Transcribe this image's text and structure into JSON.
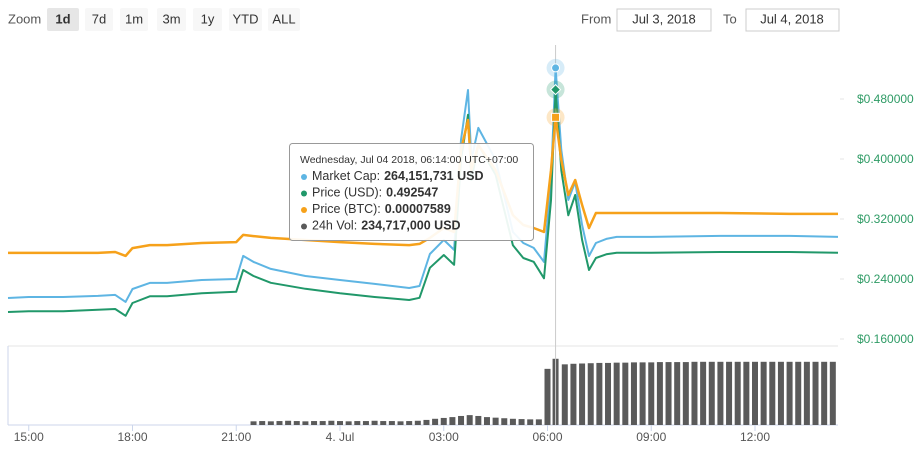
{
  "controls": {
    "zoom_label": "Zoom",
    "zoom_buttons": [
      "1d",
      "7d",
      "1m",
      "3m",
      "1y",
      "YTD",
      "ALL"
    ],
    "zoom_selected": "1d",
    "from_label": "From",
    "from": "Jul 3, 2018",
    "to_label": "To",
    "to": "Jul 4, 2018"
  },
  "chart_data": {
    "type": "line",
    "x": [
      14.4,
      15,
      16,
      17,
      17.5,
      17.8,
      18,
      18.5,
      19,
      20,
      21,
      21.2,
      21.5,
      22,
      23,
      24,
      25,
      26,
      26.3,
      26.6,
      27,
      27.3,
      27.5,
      27.7,
      27.8,
      28,
      28.5,
      29,
      29.3,
      29.6,
      29.9,
      30.1,
      30.233,
      30.4,
      30.6,
      30.8,
      31,
      31.2,
      31.4,
      31.7,
      32,
      33,
      35,
      37,
      38.4
    ],
    "xlim": [
      14.4,
      38.4
    ],
    "xticks": [
      {
        "value": 15,
        "label": "15:00"
      },
      {
        "value": 18,
        "label": "18:00"
      },
      {
        "value": 21,
        "label": "21:00"
      },
      {
        "value": 24,
        "label": "4. Jul"
      },
      {
        "value": 27,
        "label": "03:00"
      },
      {
        "value": 30,
        "label": "06:00"
      },
      {
        "value": 33,
        "label": "09:00"
      },
      {
        "value": 36,
        "label": "12:00"
      }
    ],
    "ylim": [
      0.152,
      0.552
    ],
    "yticks": [
      {
        "value": 0.16,
        "label": "$0.160000"
      },
      {
        "value": 0.24,
        "label": "$0.240000"
      },
      {
        "value": 0.32,
        "label": "$0.320000"
      },
      {
        "value": 0.4,
        "label": "$0.400000"
      },
      {
        "value": 0.48,
        "label": "$0.480000"
      }
    ],
    "y2lim": [
      72700000,
      280000000
    ],
    "y3lim": [
      0,
      0.0001
    ],
    "grid": false,
    "series": [
      {
        "name": "Market Cap:",
        "color": "#5eb5e3",
        "axis": "y2",
        "values": [
          105200000,
          105900000,
          105900000,
          106600000,
          107300000,
          102500000,
          111400000,
          115600000,
          115600000,
          117600000,
          118300000,
          134300000,
          130100000,
          125300000,
          120400000,
          117600000,
          114900000,
          112100000,
          113500000,
          135600000,
          145300000,
          138400000,
          214400000,
          248900000,
          200600000,
          222700000,
          200600000,
          150800000,
          143200000,
          139800000,
          130100000,
          186800000,
          264151731,
          207500000,
          172900000,
          185400000,
          155600000,
          134200000,
          143200000,
          146000000,
          147400000,
          147400000,
          148100000,
          148100000,
          147400000
        ]
      },
      {
        "name": "Price (USD):",
        "color": "#21986a",
        "values": [
          0.196,
          0.197,
          0.197,
          0.199,
          0.2,
          0.191,
          0.208,
          0.217,
          0.217,
          0.221,
          0.223,
          0.252,
          0.244,
          0.235,
          0.227,
          0.221,
          0.216,
          0.212,
          0.215,
          0.255,
          0.272,
          0.259,
          0.399,
          0.459,
          0.372,
          0.419,
          0.379,
          0.285,
          0.268,
          0.263,
          0.241,
          0.345,
          0.492547,
          0.385,
          0.325,
          0.352,
          0.292,
          0.252,
          0.268,
          0.273,
          0.275,
          0.275,
          0.276,
          0.276,
          0.275
        ]
      },
      {
        "name": "Price (BTC):",
        "color": "#f6a11a",
        "axis": "y3",
        "values": [
          3.07e-05,
          3.07e-05,
          3.07e-05,
          3.07e-05,
          3.1e-05,
          2.97e-05,
          3.23e-05,
          3.33e-05,
          3.33e-05,
          3.4e-05,
          3.43e-05,
          3.67e-05,
          3.63e-05,
          3.57e-05,
          3.5e-05,
          3.43e-05,
          3.37e-05,
          3.33e-05,
          3.37e-05,
          3.57e-05,
          3.9e-05,
          3.77e-05,
          6.5e-05,
          7.5e-05,
          5.83e-05,
          6.67e-05,
          5.83e-05,
          4.33e-05,
          4e-05,
          3.9e-05,
          3.77e-05,
          5.83e-05,
          7.589e-05,
          6.17e-05,
          5e-05,
          5.5e-05,
          4.67e-05,
          3.9e-05,
          4.4e-05,
          4.4e-05,
          4.4e-05,
          4.4e-05,
          4.4e-05,
          4.37e-05,
          4.37e-05
        ]
      }
    ],
    "volume": {
      "name": "24h Vol:",
      "color": "#5a5a5a",
      "ylim": [
        0,
        280000000
      ],
      "x": [
        21.5,
        21.75,
        22,
        22.25,
        22.5,
        22.75,
        23,
        23.25,
        23.5,
        23.75,
        24,
        24.25,
        24.5,
        24.75,
        25,
        25.25,
        25.5,
        25.75,
        26,
        26.25,
        26.5,
        26.75,
        27,
        27.25,
        27.5,
        27.75,
        28,
        28.25,
        28.5,
        28.75,
        29,
        29.25,
        29.5,
        29.75,
        30,
        30.233,
        30.5,
        30.75,
        31,
        31.25,
        31.5,
        31.75,
        32,
        32.25,
        32.5,
        32.75,
        33,
        33.25,
        33.5,
        33.75,
        34,
        34.25,
        34.5,
        34.75,
        35,
        35.25,
        35.5,
        35.75,
        36,
        36.25,
        36.5,
        36.75,
        37,
        37.25,
        37.5,
        37.75,
        38,
        38.25
      ],
      "values": [
        13000000,
        14000000,
        13000000,
        14000000,
        15000000,
        14000000,
        13000000,
        14000000,
        14000000,
        15000000,
        14000000,
        13000000,
        14000000,
        14000000,
        15000000,
        14000000,
        14000000,
        13000000,
        14000000,
        15000000,
        18000000,
        22000000,
        25000000,
        28000000,
        32000000,
        35000000,
        32000000,
        28000000,
        26000000,
        24000000,
        22000000,
        21000000,
        20000000,
        20000000,
        199000000,
        234717000,
        215000000,
        217000000,
        218000000,
        219000000,
        220000000,
        220000000,
        221000000,
        221000000,
        222000000,
        222000000,
        222000000,
        223000000,
        223000000,
        223000000,
        223000000,
        224000000,
        224000000,
        224000000,
        224000000,
        224000000,
        224000000,
        224000000,
        224000000,
        224000000,
        224000000,
        224000000,
        224000000,
        224000000,
        224000000,
        224000000,
        224000000,
        224000000
      ]
    },
    "tooltip": {
      "title": "Wednesday, Jul 04 2018, 06:14:00 UTC+07:00",
      "values": [
        "264,151,731 USD",
        "0.492547",
        "0.00007589",
        "234,717,000 USD"
      ]
    }
  }
}
